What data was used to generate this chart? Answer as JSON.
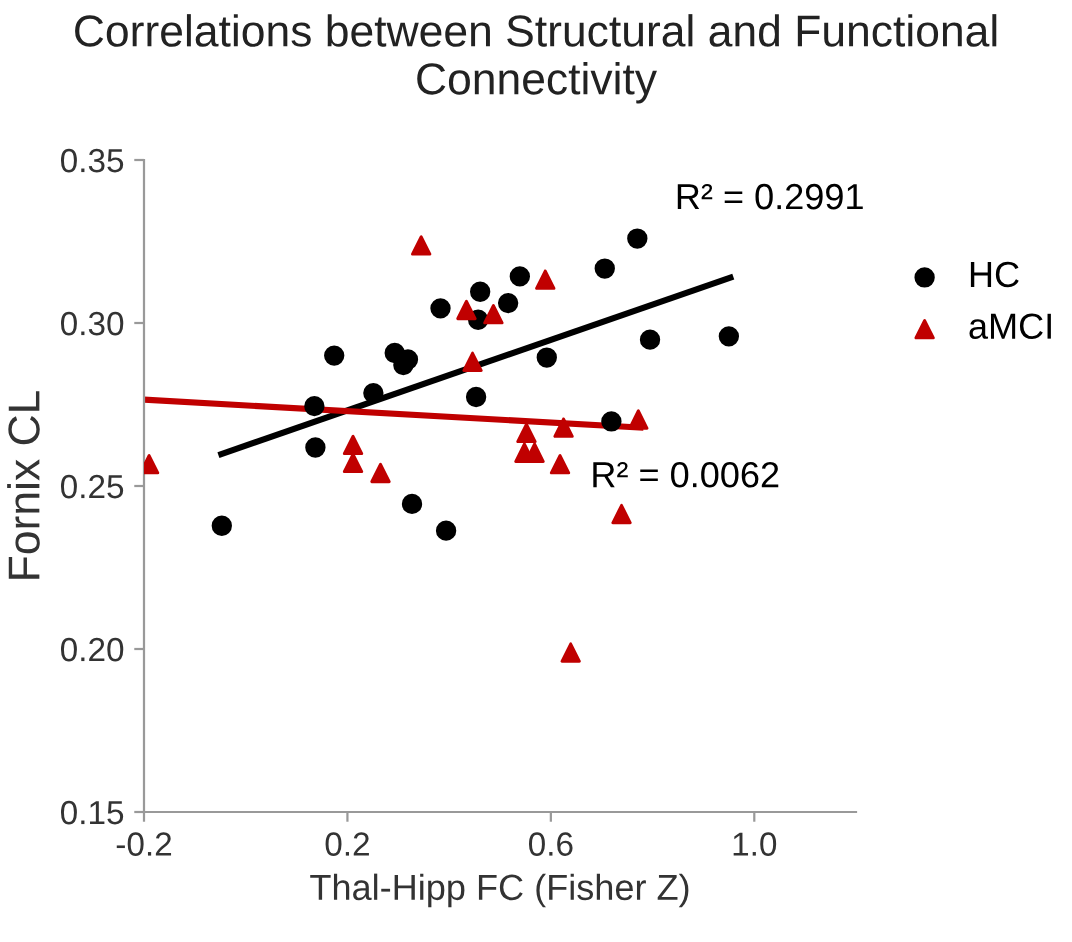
{
  "chart_data": {
    "type": "scatter",
    "title": "Correlations between Structural and Functional Connectivity",
    "xlabel": "Thal-Hipp FC (Fisher Z)",
    "ylabel": "Fornix CL",
    "xlim": [
      -0.2,
      1.2
    ],
    "xticks": [
      -0.2,
      0.2,
      0.6,
      {
        "value": 1.0,
        "label": "1.0"
      }
    ],
    "ylim": [
      0.15,
      0.35
    ],
    "yticks": [
      {
        "value": 0.15,
        "label": "0.15"
      },
      {
        "value": 0.2,
        "label": "0.20"
      },
      {
        "value": 0.25,
        "label": "0.25"
      },
      {
        "value": 0.3,
        "label": "0.30"
      },
      {
        "value": 0.35,
        "label": "0.35"
      }
    ],
    "grid": false,
    "legend": "right",
    "series": [
      {
        "name": "HC",
        "color": "#000000",
        "marker": "circle",
        "x": [
          0.135,
          0.137,
          0.174,
          0.251,
          0.293,
          0.31,
          0.319,
          0.383,
          0.453,
          0.457,
          0.461,
          0.516,
          0.539,
          0.592,
          0.706,
          0.77,
          0.795,
          0.95,
          0.719,
          -0.047,
          0.327,
          0.394
        ],
        "values": [
          0.2745,
          0.2618,
          0.29,
          0.2785,
          0.2908,
          0.2871,
          0.2888,
          0.3045,
          0.2773,
          0.301,
          0.3096,
          0.3061,
          0.3143,
          0.2894,
          0.3167,
          0.3259,
          0.2949,
          0.2959,
          0.2698,
          0.2378,
          0.2445,
          0.2363
        ]
      },
      {
        "name": "aMCI",
        "color": "#c00000",
        "marker": "triangle",
        "x": [
          0.345,
          0.434,
          0.487,
          0.446,
          0.211,
          0.211,
          0.265,
          -0.19,
          0.589,
          0.552,
          0.548,
          0.568,
          0.625,
          0.618,
          0.772,
          0.739,
          0.639
        ],
        "values": [
          0.3238,
          0.304,
          0.3027,
          0.2881,
          0.2626,
          0.2571,
          0.254,
          0.2567,
          0.3133,
          0.2663,
          0.2602,
          0.2602,
          0.2679,
          0.2567,
          0.2704,
          0.2414,
          0.1989
        ]
      },
      {
        "type": "line",
        "color": "#000000",
        "marker": "none",
        "x": [
          -0.048,
          0.953
        ],
        "values": [
          0.2598,
          0.3139
        ]
      },
      {
        "type": "line",
        "color": "#c00000",
        "marker": "none",
        "x": [
          -0.2,
          0.776
        ],
        "values": [
          0.2765,
          0.2679
        ]
      }
    ],
    "annotations": [
      {
        "text": "R² = 0.2991",
        "x": 0.953,
        "y": 0.3139
      },
      {
        "text": "R² = 0.0062",
        "x": 0.776,
        "y": 0.2679
      }
    ]
  }
}
